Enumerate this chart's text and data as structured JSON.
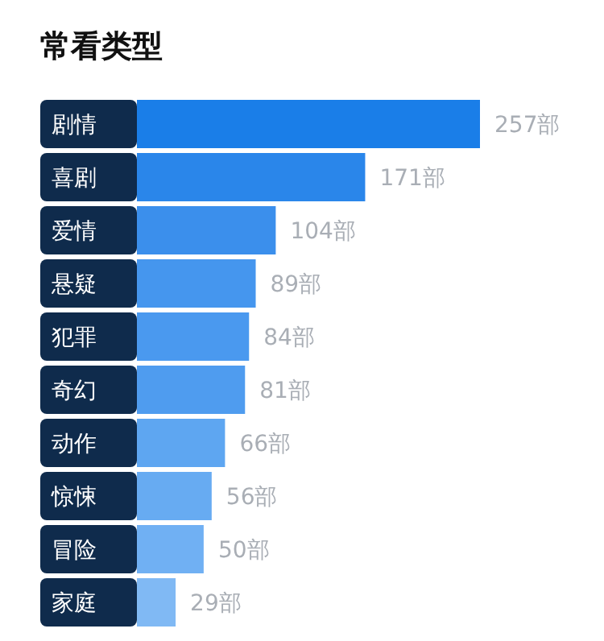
{
  "chart_data": {
    "type": "bar",
    "orientation": "horizontal",
    "title": "常看类型",
    "categories": [
      "剧情",
      "喜剧",
      "爱情",
      "悬疑",
      "犯罪",
      "奇幻",
      "动作",
      "惊悚",
      "冒险",
      "家庭"
    ],
    "values": [
      257,
      171,
      104,
      89,
      84,
      81,
      66,
      56,
      50,
      29
    ],
    "colors": [
      "#1a7ee8",
      "#2a86ea",
      "#3b8fec",
      "#4596ee",
      "#4a99ef",
      "#4f9cef",
      "#5ea6f1",
      "#67abf2",
      "#70b0f3",
      "#80b9f4"
    ],
    "value_labels": [
      "257部",
      "171部",
      "104部",
      "89部",
      "84部",
      "81部",
      "66部",
      "56部",
      "50部",
      "29部"
    ]
  }
}
